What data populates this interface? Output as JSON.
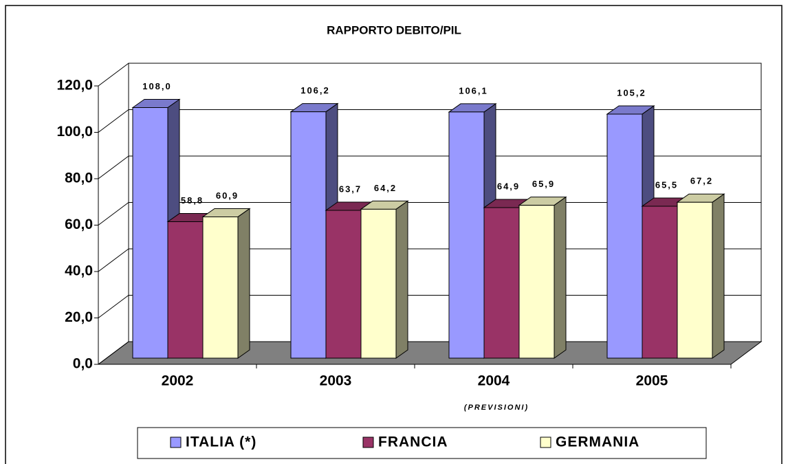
{
  "chart_data": {
    "type": "bar3d",
    "title": "RAPPORTO DEBITO/PIL",
    "categories": [
      "2002",
      "2003",
      "2004",
      "2005"
    ],
    "series": [
      {
        "name": "ITALIA (*)",
        "color": "#9999ff",
        "values": [
          108.0,
          106.2,
          106.1,
          105.2
        ],
        "value_labels": [
          "108,0",
          "106,2",
          "106,1",
          "105,2"
        ]
      },
      {
        "name": "FRANCIA",
        "color": "#993366",
        "values": [
          58.8,
          63.7,
          64.9,
          65.5
        ],
        "value_labels": [
          "58,8",
          "63,7",
          "64,9",
          "65,5"
        ]
      },
      {
        "name": "GERMANIA",
        "color": "#ffffcc",
        "values": [
          60.9,
          64.2,
          65.9,
          67.2
        ],
        "value_labels": [
          "60,9",
          "64,2",
          "65,9",
          "67,2"
        ]
      }
    ],
    "annotation": "(PREVISIONI)",
    "ylim": [
      0,
      120
    ],
    "yticks": [
      {
        "value": 0,
        "label": "0,0"
      },
      {
        "value": 20,
        "label": "20,0"
      },
      {
        "value": 40,
        "label": "40,0"
      },
      {
        "value": 60,
        "label": "60,0"
      },
      {
        "value": 80,
        "label": "80,0"
      },
      {
        "value": 100,
        "label": "100,0"
      },
      {
        "value": 120,
        "label": "120,0"
      }
    ],
    "grid": true,
    "legend": "bottom"
  }
}
